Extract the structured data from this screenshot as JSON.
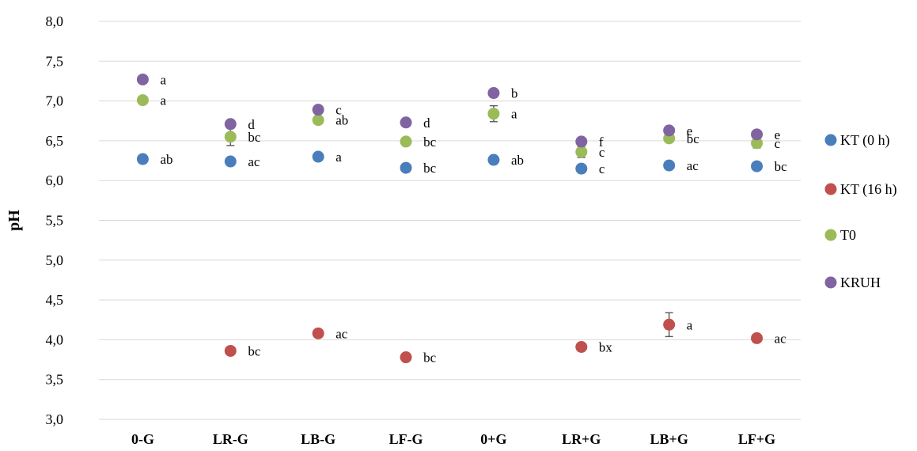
{
  "chart_data": {
    "type": "scatter",
    "title": "",
    "xlabel": "",
    "ylabel": "pH",
    "ylim": [
      3.0,
      8.0
    ],
    "yticks": [
      "3,0",
      "3,5",
      "4,0",
      "4,5",
      "5,0",
      "5,5",
      "6,0",
      "6,5",
      "7,0",
      "7,5",
      "8,0"
    ],
    "grid": true,
    "legend_position": "right",
    "categories": [
      "0-G",
      "LR-G",
      "LB-G",
      "LF-G",
      "0+G",
      "LR+G",
      "LB+G",
      "LF+G"
    ],
    "series": [
      {
        "name": "KT (0 h)",
        "color": "#4a7ebb",
        "values": [
          6.27,
          6.24,
          6.3,
          6.16,
          6.26,
          6.15,
          6.19,
          6.18
        ],
        "errors": [
          0,
          0,
          0,
          0,
          0.03,
          0,
          0,
          0
        ],
        "labels": [
          "ab",
          "ac",
          "a",
          "bc",
          "ab",
          "c",
          "ac",
          "bc"
        ]
      },
      {
        "name": "KT (16 h)",
        "color": "#c0504d",
        "values": [
          null,
          3.86,
          4.08,
          3.78,
          null,
          3.91,
          4.19,
          4.02
        ],
        "errors": [
          0,
          0.04,
          0,
          0,
          0,
          0,
          0.15,
          0
        ],
        "labels": [
          "",
          "bc",
          "ac",
          "bc",
          "",
          "bx",
          "a",
          "ac"
        ]
      },
      {
        "name": "T0",
        "color": "#9bbb59",
        "values": [
          7.01,
          6.55,
          6.76,
          6.49,
          6.84,
          6.36,
          6.53,
          6.47
        ],
        "errors": [
          0,
          0.11,
          0,
          0,
          0.1,
          0.07,
          0,
          0.06
        ],
        "labels": [
          "a",
          "bc",
          "ab",
          "bc",
          "a",
          "c",
          "bc",
          "c"
        ]
      },
      {
        "name": "KRUH",
        "color": "#8064a2",
        "values": [
          7.27,
          6.71,
          6.89,
          6.73,
          7.1,
          6.49,
          6.63,
          6.58
        ],
        "errors": [
          0,
          0.04,
          0,
          0,
          0,
          0,
          0,
          0
        ],
        "labels": [
          "a",
          "d",
          "c",
          "d",
          "b",
          "f",
          "e",
          "e"
        ]
      }
    ]
  }
}
